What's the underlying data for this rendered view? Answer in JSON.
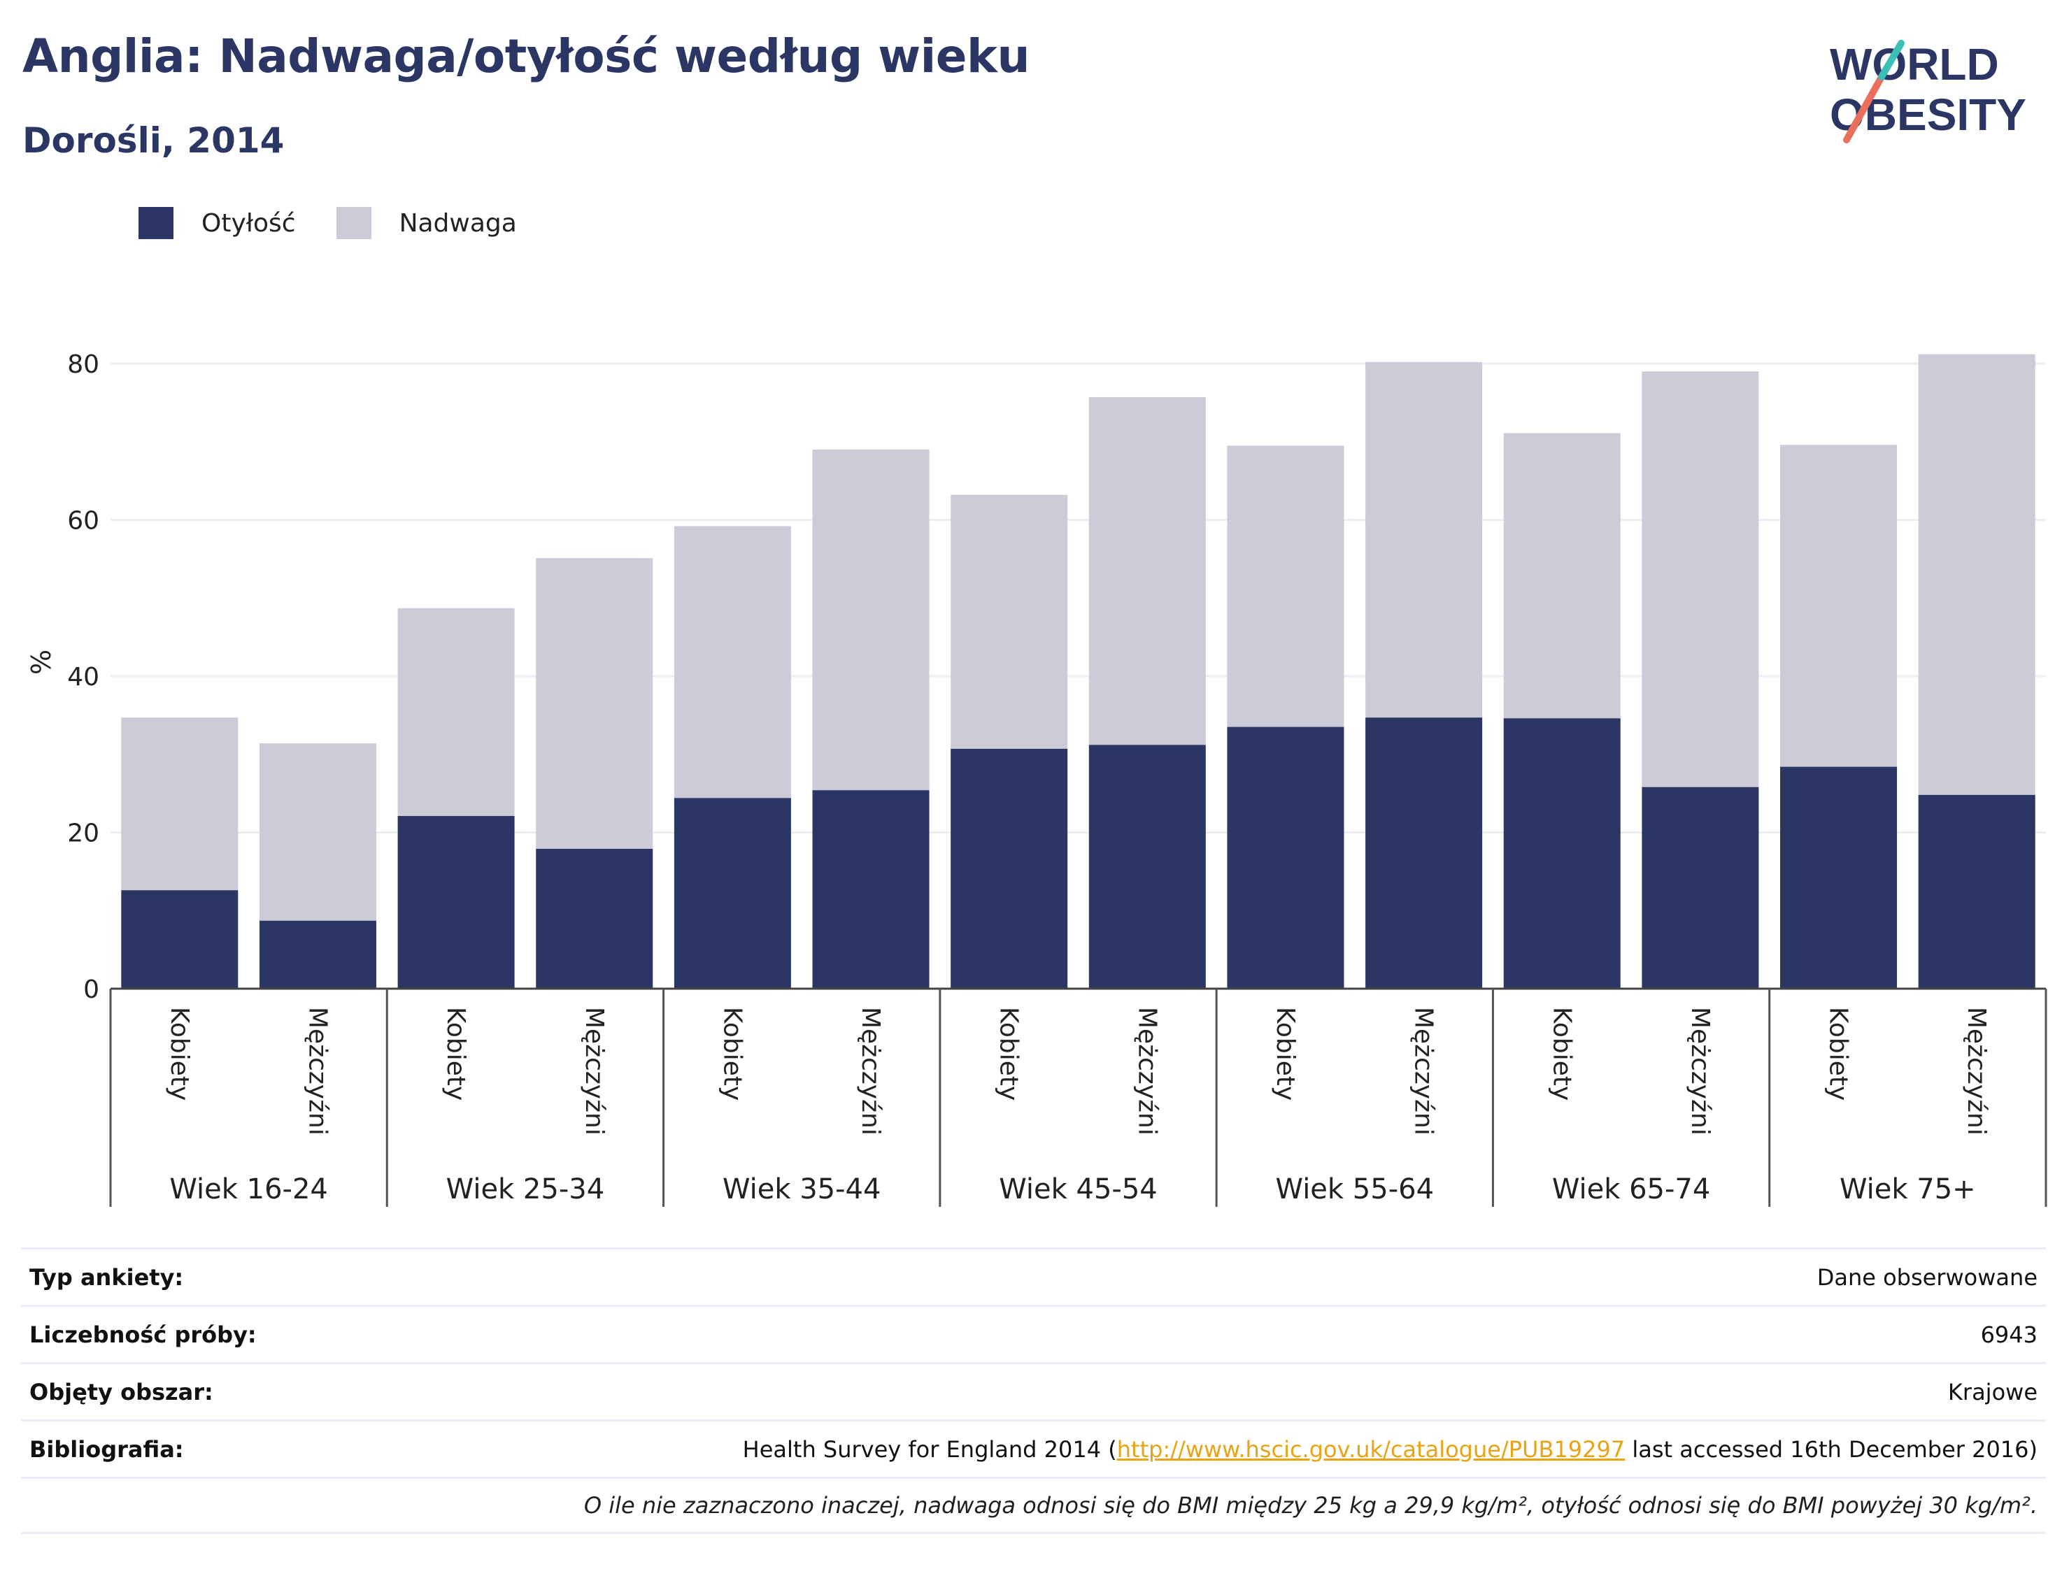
{
  "header": {
    "title": "Anglia: Nadwaga/otyłość według wieku",
    "subtitle": "Dorośli, 2014",
    "logo_line1": "WORLD",
    "logo_line2": "OBESITY"
  },
  "legend": {
    "items": [
      {
        "label": "Otyłość",
        "color": "#2b3664"
      },
      {
        "label": "Nadwaga",
        "color": "#cbccd8"
      }
    ]
  },
  "chart_data": {
    "type": "bar",
    "stacked": true,
    "ylabel": "%",
    "ylim": [
      0,
      85
    ],
    "yticks": [
      0,
      20,
      40,
      60,
      80
    ],
    "grid": true,
    "legend_position": "top-left",
    "groups": [
      "Wiek 16-24",
      "Wiek 25-34",
      "Wiek 35-44",
      "Wiek 45-54",
      "Wiek 55-64",
      "Wiek 65-74",
      "Wiek 75+"
    ],
    "subcategories": [
      "Kobiety",
      "Mężczyźni"
    ],
    "series": [
      {
        "name": "Otyłość",
        "color": "#2b3664",
        "values": [
          12.6,
          8.7,
          22.1,
          17.9,
          24.4,
          25.4,
          30.7,
          31.2,
          33.5,
          34.7,
          34.6,
          25.8,
          28.4,
          24.8
        ]
      },
      {
        "name": "Nadwaga",
        "color": "#cbccd8",
        "values": [
          22.1,
          22.7,
          26.6,
          37.2,
          34.8,
          43.6,
          32.5,
          44.5,
          36.0,
          45.5,
          36.5,
          53.2,
          41.2,
          56.4
        ]
      }
    ]
  },
  "metadata": {
    "rows": [
      {
        "key": "Typ ankiety:",
        "value": "Dane obserwowane"
      },
      {
        "key": "Liczebność próby:",
        "value": "6943"
      },
      {
        "key": "Objęty obszar:",
        "value": "Krajowe"
      }
    ],
    "bibliography": {
      "key": "Bibliografia:",
      "prefix": "Health Survey for England 2014 (",
      "link": "http://www.hscic.gov.uk/catalogue/PUB19297",
      "suffix": " last accessed 16th December 2016)"
    },
    "note": "O ile nie zaznaczono inaczej, nadwaga odnosi się do BMI między 25 kg a 29,9 kg/m², otyłość odnosi się do BMI powyżej 30 kg/m²."
  }
}
